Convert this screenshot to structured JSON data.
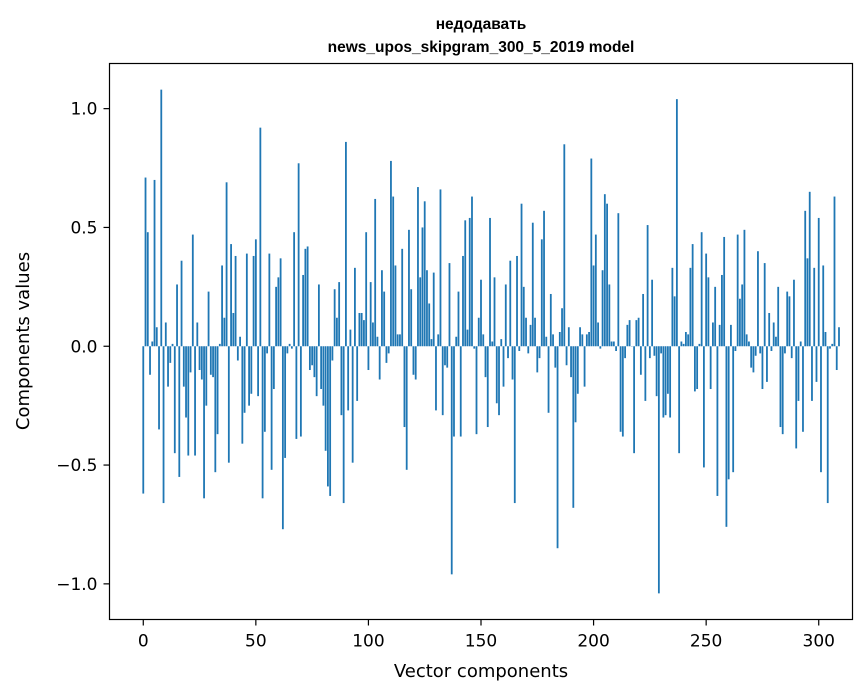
{
  "chart_data": {
    "type": "bar",
    "title_line1": "недодавать",
    "title_line2": "news_upos_skipgram_300_5_2019 model",
    "xlabel": "Vector components",
    "ylabel": "Components values",
    "xlim": [
      -15,
      315
    ],
    "ylim": [
      -1.15,
      1.19
    ],
    "xticks": [
      0,
      50,
      100,
      150,
      200,
      250,
      300
    ],
    "xtick_labels": [
      "0",
      "50",
      "100",
      "150",
      "200",
      "250",
      "300"
    ],
    "yticks": [
      -1.0,
      -0.5,
      0.0,
      0.5,
      1.0
    ],
    "ytick_labels": [
      "−1.0",
      "−0.5",
      "0.0",
      "0.5",
      "1.0"
    ],
    "bar_color": "#1f77b4",
    "grid": false,
    "x_start": 0,
    "values": [
      -0.62,
      0.71,
      0.48,
      -0.12,
      0.02,
      0.7,
      0.08,
      -0.35,
      1.08,
      -0.66,
      0.1,
      -0.17,
      -0.07,
      0.01,
      -0.45,
      0.26,
      -0.55,
      0.36,
      -0.17,
      -0.3,
      -0.46,
      -0.11,
      0.47,
      -0.46,
      0.1,
      -0.1,
      -0.14,
      -0.64,
      -0.25,
      0.23,
      -0.12,
      -0.13,
      -0.53,
      -0.37,
      0.01,
      0.34,
      0.12,
      0.69,
      -0.49,
      0.43,
      0.14,
      0.38,
      -0.06,
      0.04,
      -0.41,
      -0.28,
      0.39,
      -0.25,
      -0.2,
      0.38,
      0.45,
      -0.21,
      0.92,
      -0.64,
      -0.36,
      -0.03,
      0.39,
      -0.52,
      -0.18,
      0.25,
      0.29,
      0.37,
      -0.77,
      -0.47,
      -0.03,
      0.01,
      -0.01,
      0.48,
      -0.39,
      0.77,
      -0.38,
      0.3,
      0.41,
      0.42,
      -0.1,
      -0.08,
      -0.13,
      -0.21,
      0.26,
      -0.18,
      -0.25,
      -0.44,
      -0.59,
      -0.63,
      -0.06,
      0.24,
      0.12,
      0.27,
      -0.29,
      -0.66,
      0.86,
      -0.27,
      0.07,
      -0.49,
      0.33,
      -0.23,
      0.14,
      0.14,
      0.11,
      0.48,
      -0.1,
      0.27,
      0.1,
      0.62,
      0.04,
      -0.14,
      0.32,
      0.23,
      -0.07,
      -0.03,
      0.78,
      0.63,
      0.34,
      0.05,
      0.05,
      0.41,
      -0.34,
      -0.52,
      0.49,
      0.24,
      -0.12,
      -0.14,
      0.67,
      0.29,
      0.5,
      0.61,
      0.32,
      0.18,
      0.03,
      0.31,
      -0.27,
      0.05,
      0.66,
      -0.29,
      -0.08,
      -0.09,
      0.35,
      -0.96,
      -0.38,
      0.04,
      0.23,
      -0.38,
      0.38,
      0.53,
      0.07,
      0.54,
      0.63,
      -0.01,
      -0.37,
      0.12,
      0.28,
      0.05,
      -0.13,
      -0.34,
      0.54,
      0.02,
      0.29,
      -0.24,
      -0.29,
      0.03,
      -0.17,
      0.26,
      -0.05,
      0.36,
      -0.14,
      -0.66,
      0.38,
      -0.02,
      0.6,
      0.25,
      0.12,
      -0.03,
      0.09,
      0.52,
      0.12,
      -0.11,
      -0.05,
      0.45,
      0.57,
      0.04,
      -0.28,
      0.22,
      0.05,
      -0.09,
      -0.85,
      0.06,
      0.16,
      0.85,
      -0.08,
      0.08,
      -0.13,
      -0.68,
      -0.32,
      -0.2,
      0.08,
      0.05,
      -0.17,
      0.05,
      0.06,
      0.79,
      0.34,
      0.47,
      0.1,
      -0.01,
      0.32,
      0.64,
      0.6,
      0.26,
      0.02,
      0.02,
      -0.02,
      0.56,
      -0.36,
      -0.38,
      -0.05,
      0.09,
      0.11,
      0.0,
      -0.45,
      0.11,
      0.12,
      -0.12,
      0.22,
      -0.23,
      0.51,
      -0.05,
      0.28,
      -0.04,
      -0.21,
      -1.04,
      -0.03,
      -0.3,
      -0.29,
      -0.2,
      -0.3,
      0.33,
      0.21,
      1.04,
      -0.45,
      0.02,
      0.01,
      0.06,
      0.05,
      0.33,
      0.43,
      -0.19,
      -0.18,
      0.01,
      0.48,
      -0.51,
      0.39,
      0.29,
      -0.18,
      0.1,
      0.25,
      -0.63,
      0.09,
      0.3,
      0.46,
      -0.76,
      -0.56,
      0.09,
      -0.53,
      -0.02,
      0.47,
      0.2,
      0.26,
      0.49,
      0.05,
      0.02,
      -0.09,
      -0.11,
      -0.04,
      0.4,
      -0.03,
      -0.18,
      0.35,
      -0.15,
      0.14,
      -0.02,
      0.1,
      0.04,
      0.25,
      -0.34,
      -0.37,
      -0.03,
      0.23,
      0.21,
      -0.05,
      0.28,
      -0.43,
      -0.23,
      0.02,
      -0.36,
      0.57,
      0.37,
      0.65,
      -0.23,
      0.33,
      -0.15,
      0.54,
      -0.53,
      0.34,
      0.06,
      -0.66,
      -0.01,
      0.01,
      0.63,
      -0.1,
      0.08
    ]
  }
}
